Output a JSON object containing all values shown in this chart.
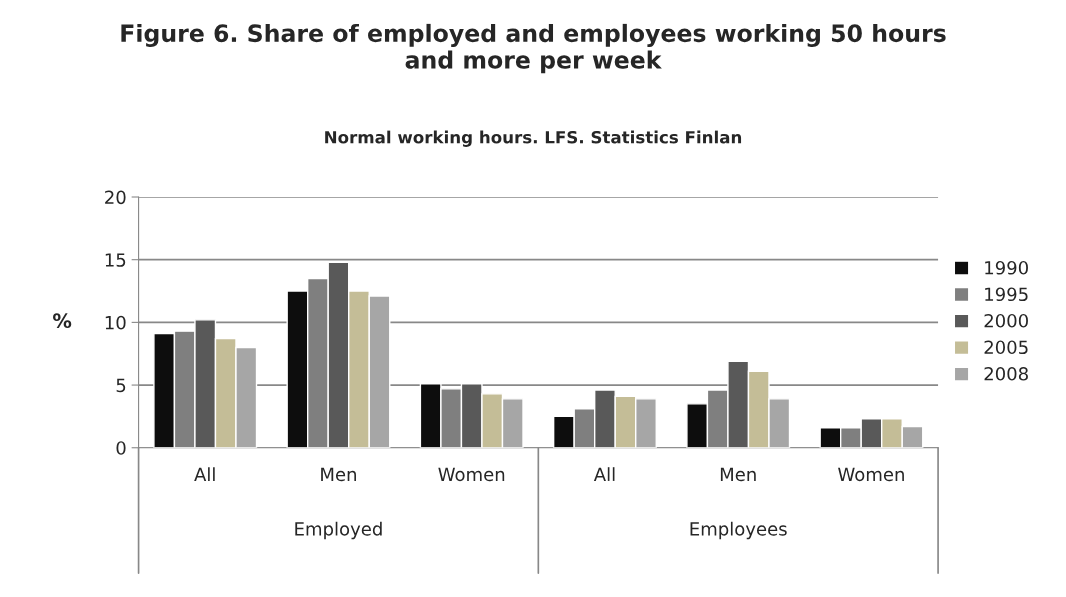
{
  "chart_data": {
    "type": "bar",
    "title": "Figure 6. Share of employed and employees working 50 hours\nand more per week",
    "subtitle": "Normal working hours. LFS. Statistics Finlan",
    "ylabel": "%",
    "categories": [
      "All",
      "Men",
      "Women",
      "All",
      "Men",
      "Women"
    ],
    "annotations": [
      "Employed",
      "Employees"
    ],
    "series": [
      {
        "name": "1990",
        "color": "#0d0d0d",
        "values": [
          9.1,
          12.5,
          5.1,
          2.5,
          3.5,
          1.6
        ]
      },
      {
        "name": "1995",
        "color": "#7f7f7f",
        "values": [
          9.3,
          13.5,
          4.7,
          3.1,
          4.6,
          1.6
        ]
      },
      {
        "name": "2000",
        "color": "#595959",
        "values": [
          10.2,
          14.8,
          5.1,
          4.6,
          6.9,
          2.3
        ]
      },
      {
        "name": "2005",
        "color": "#c4bd97",
        "values": [
          8.7,
          12.5,
          4.3,
          4.1,
          6.1,
          2.3
        ]
      },
      {
        "name": "2008",
        "color": "#a6a6a6",
        "values": [
          8.0,
          12.1,
          3.9,
          3.9,
          3.9,
          1.7
        ]
      }
    ],
    "ylim": [
      0,
      20
    ],
    "yticks": [
      0,
      5,
      10,
      15,
      20
    ],
    "grid": "y",
    "legend": "right"
  }
}
